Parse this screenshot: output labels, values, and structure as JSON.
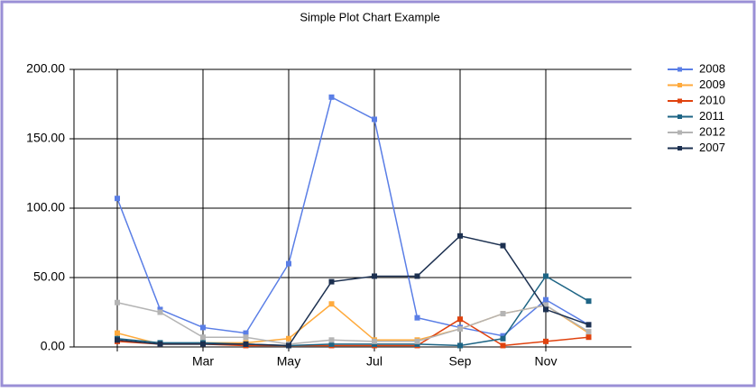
{
  "chart_data": {
    "type": "line",
    "title": "Simple Plot Chart Example",
    "categories": [
      null,
      null,
      "Mar",
      null,
      "May",
      null,
      "Jul",
      null,
      "Sep",
      null,
      "Nov",
      null
    ],
    "series": [
      {
        "name": "2008",
        "color": "#5a7ee6",
        "values": [
          107,
          27,
          14,
          10,
          60,
          180,
          164,
          21,
          14,
          8,
          34,
          16
        ]
      },
      {
        "name": "2009",
        "color": "#ffaa3c",
        "values": [
          10,
          2,
          3,
          3,
          6,
          31,
          5,
          5,
          13,
          24,
          30,
          10
        ]
      },
      {
        "name": "2010",
        "color": "#e0420e",
        "values": [
          4,
          2,
          2,
          1,
          1,
          1,
          1,
          1,
          20,
          1,
          4,
          7
        ]
      },
      {
        "name": "2011",
        "color": "#1e6585",
        "values": [
          6,
          3,
          3,
          2,
          1,
          2,
          2,
          2,
          1,
          6,
          51,
          33
        ]
      },
      {
        "name": "2012",
        "color": "#b4b4b4",
        "values": [
          32,
          25,
          7,
          7,
          2,
          5,
          4,
          4,
          13,
          24,
          30,
          11
        ]
      },
      {
        "name": "2007",
        "color": "#1c3050",
        "values": [
          5,
          2,
          2,
          2,
          1,
          47,
          51,
          51,
          80,
          73,
          27,
          16
        ]
      }
    ],
    "ylim": [
      0,
      200
    ],
    "yticks": [
      {
        "value": 0,
        "label": "0.00"
      },
      {
        "value": 50,
        "label": "50.00"
      },
      {
        "value": 100,
        "label": "100.00"
      },
      {
        "value": 150,
        "label": "150.00"
      },
      {
        "value": 200,
        "label": "200.00"
      }
    ],
    "grid": true,
    "legend": "top-right"
  }
}
